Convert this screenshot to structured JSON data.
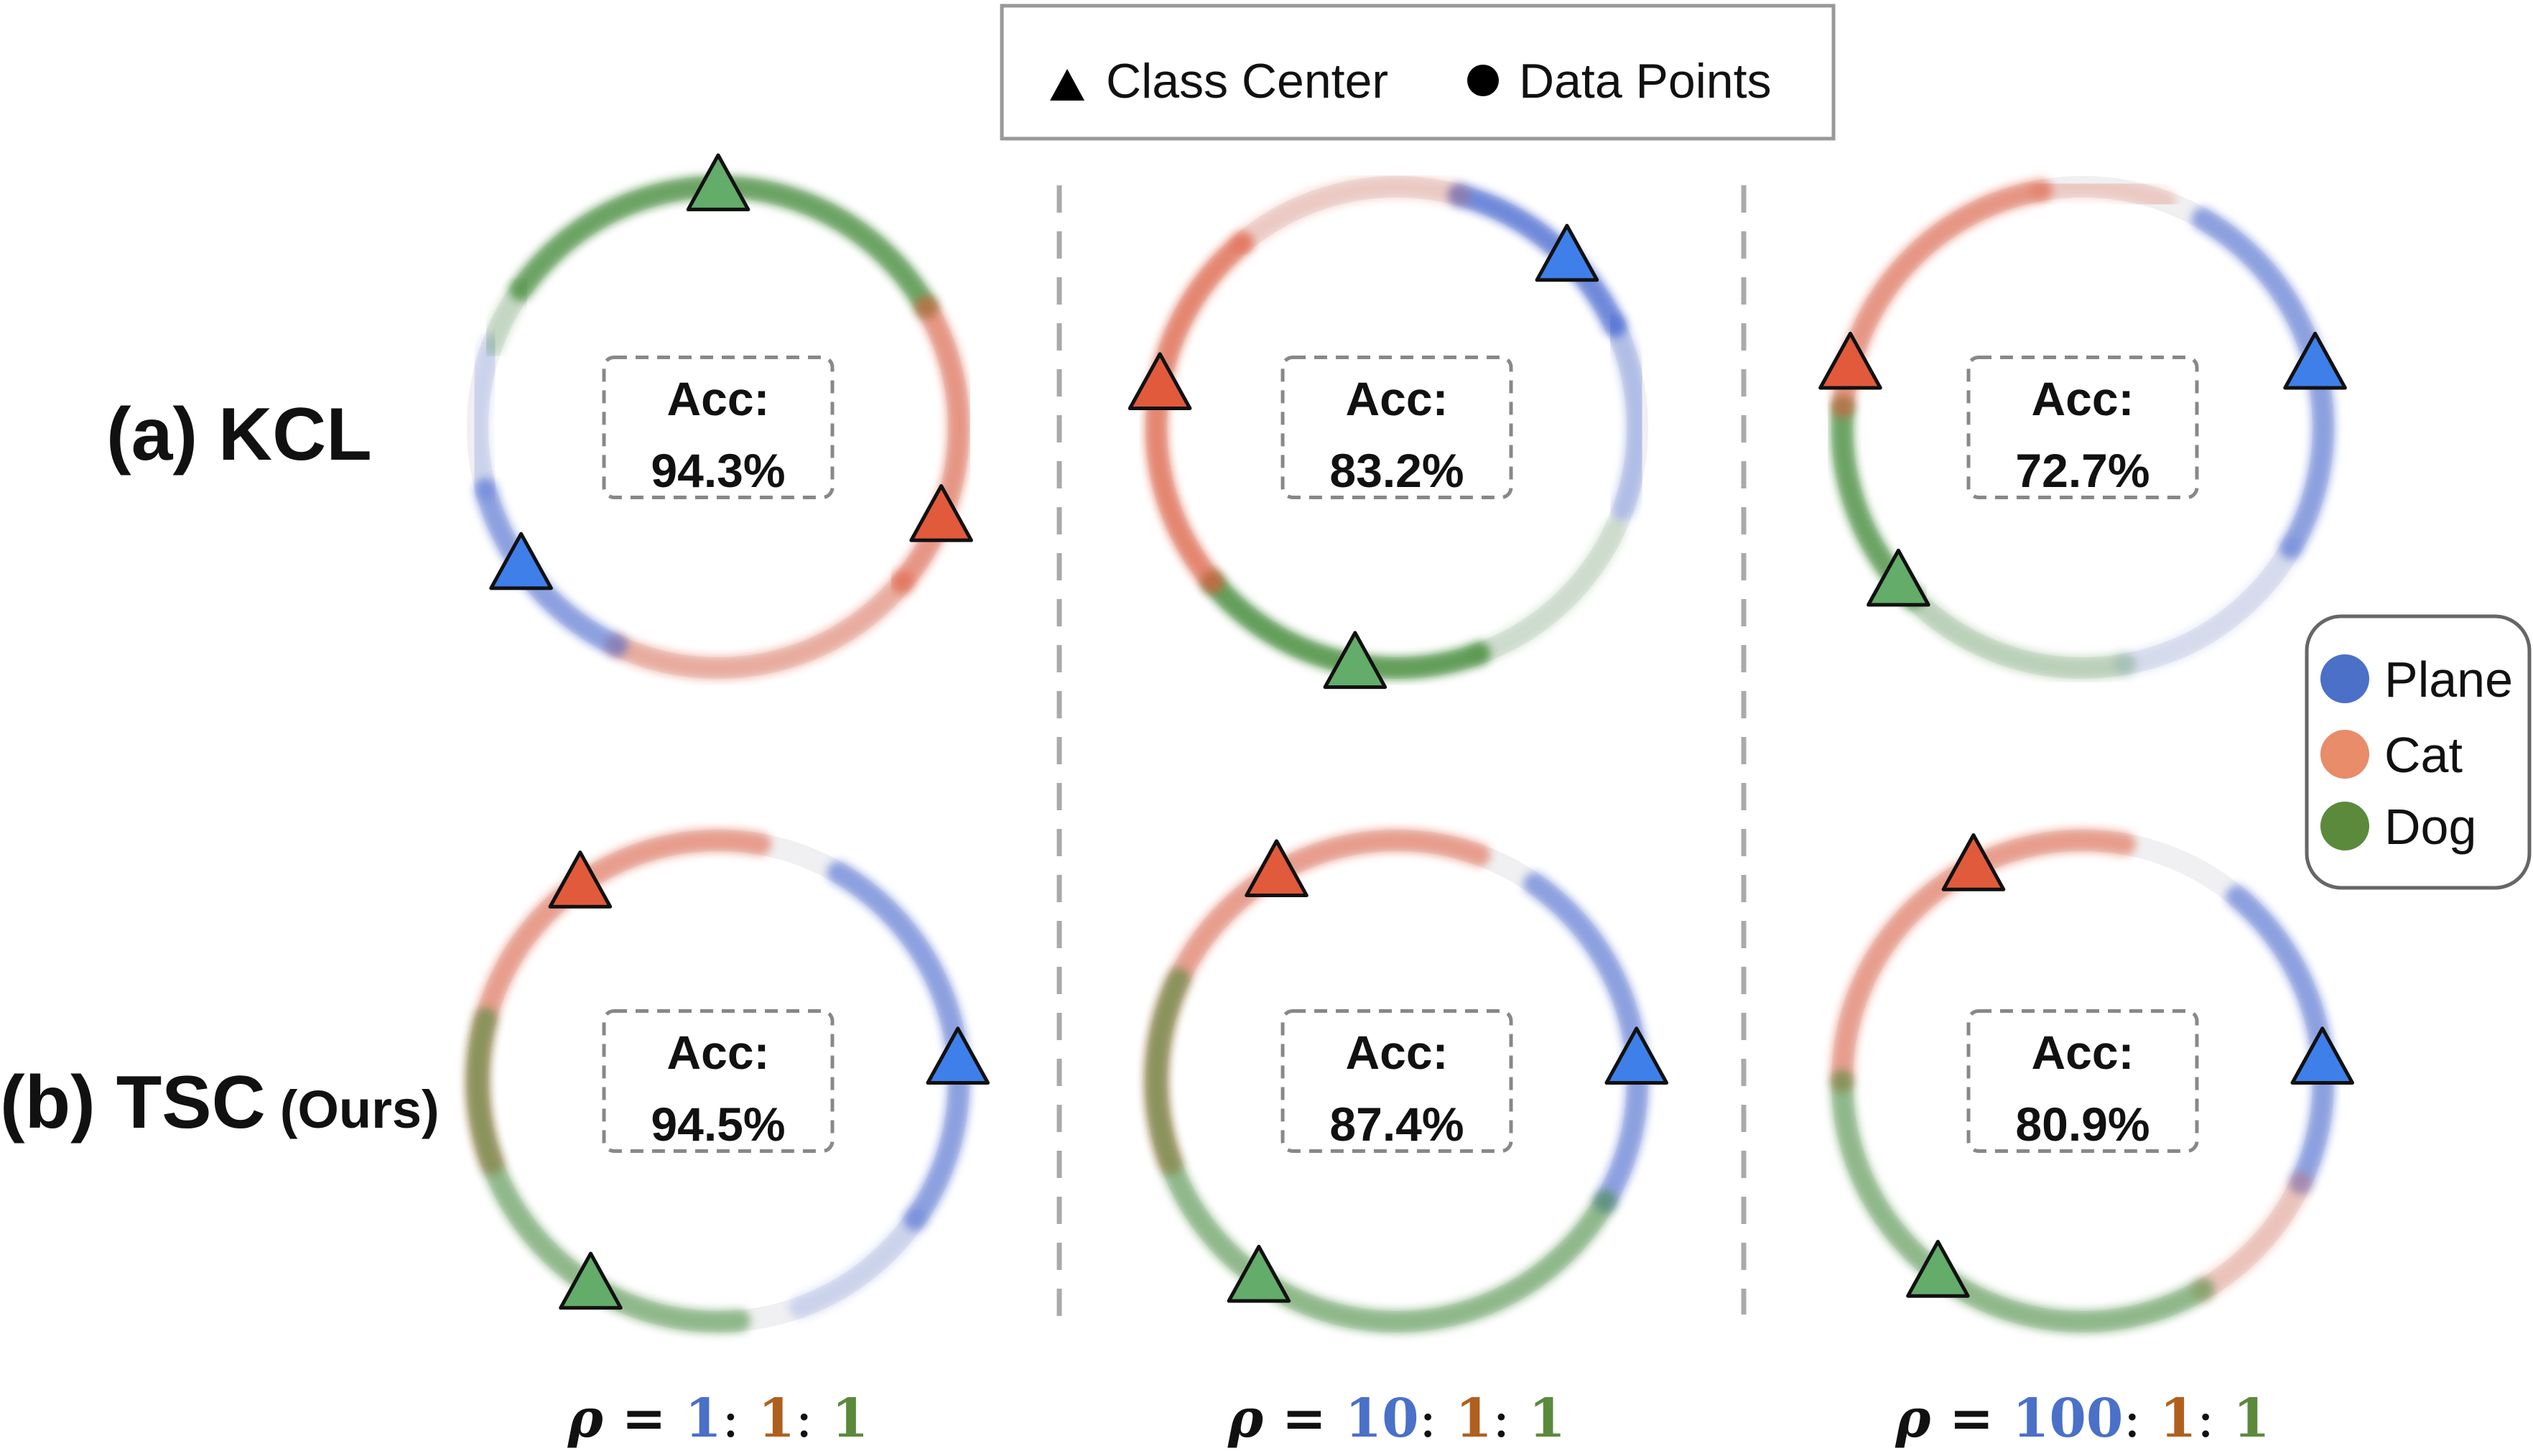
{
  "top_legend": {
    "items": [
      {
        "label": "Class Center",
        "icon": "triangle-icon"
      },
      {
        "label": "Data Points",
        "icon": "circle-icon"
      }
    ]
  },
  "rows": [
    {
      "label_main": "(a) KCL",
      "label_suffix": ""
    },
    {
      "label_main": "(b) TSC",
      "label_suffix": "(Ours)"
    }
  ],
  "class_legend": [
    {
      "label": "Plane",
      "color": "#4a70c8"
    },
    {
      "label": "Cat",
      "color": "#e88c6a"
    },
    {
      "label": "Dog",
      "color": "#5b8a3c"
    }
  ],
  "acc_label": "Acc:",
  "panels": [
    {
      "id": "kcl-1",
      "acc": "94.3%",
      "centers": [
        {
          "cls": "dog",
          "deg": -90
        },
        {
          "cls": "cat",
          "deg": 22
        },
        {
          "cls": "plane",
          "deg": 145
        }
      ],
      "segments": [
        {
          "cls": "dog",
          "from": -145,
          "to": -30,
          "o": 0.75
        },
        {
          "cls": "cat",
          "from": -30,
          "to": 40,
          "o": 0.6
        },
        {
          "cls": "cat",
          "from": 40,
          "to": 115,
          "o": 0.45
        },
        {
          "cls": "plane",
          "from": 115,
          "to": 165,
          "o": 0.55
        },
        {
          "cls": "plane",
          "from": 165,
          "to": 200,
          "o": 0.2
        },
        {
          "cls": "dog",
          "from": 200,
          "to": 215,
          "o": 0.25
        }
      ]
    },
    {
      "id": "kcl-2",
      "acc": "83.2%",
      "centers": [
        {
          "cls": "plane",
          "deg": -45
        },
        {
          "cls": "cat",
          "deg": 190
        },
        {
          "cls": "dog",
          "deg": 100
        }
      ],
      "segments": [
        {
          "cls": "plane",
          "from": -75,
          "to": -25,
          "o": 0.7
        },
        {
          "cls": "plane",
          "from": -25,
          "to": 20,
          "o": 0.35
        },
        {
          "cls": "dog",
          "from": 25,
          "to": 70,
          "o": 0.2
        },
        {
          "cls": "dog",
          "from": 70,
          "to": 140,
          "o": 0.8
        },
        {
          "cls": "cat",
          "from": 140,
          "to": 230,
          "o": 0.7
        },
        {
          "cls": "cat",
          "from": 230,
          "to": 285,
          "o": 0.25
        }
      ]
    },
    {
      "id": "kcl-3",
      "acc": "72.7%",
      "centers": [
        {
          "cls": "plane",
          "deg": -15
        },
        {
          "cls": "cat",
          "deg": 195
        },
        {
          "cls": "dog",
          "deg": 140
        }
      ],
      "segments": [
        {
          "cls": "plane",
          "from": -60,
          "to": 30,
          "o": 0.55
        },
        {
          "cls": "plane",
          "from": 30,
          "to": 80,
          "o": 0.15
        },
        {
          "cls": "dog",
          "from": 80,
          "to": 135,
          "o": 0.3
        },
        {
          "cls": "dog",
          "from": 135,
          "to": 185,
          "o": 0.75
        },
        {
          "cls": "cat",
          "from": 185,
          "to": 260,
          "o": 0.6
        },
        {
          "cls": "cat",
          "from": 260,
          "to": 290,
          "o": 0.25
        }
      ]
    },
    {
      "id": "tsc-1",
      "acc": "94.5%",
      "centers": [
        {
          "cls": "cat",
          "deg": -125
        },
        {
          "cls": "plane",
          "deg": -5
        },
        {
          "cls": "dog",
          "deg": 122
        }
      ],
      "segments": [
        {
          "cls": "cat",
          "from": -200,
          "to": -80,
          "o": 0.55
        },
        {
          "cls": "plane",
          "from": -60,
          "to": 35,
          "o": 0.55
        },
        {
          "cls": "plane",
          "from": 35,
          "to": 70,
          "o": 0.2
        },
        {
          "cls": "dog",
          "from": 85,
          "to": 195,
          "o": 0.55
        }
      ]
    },
    {
      "id": "tsc-2",
      "acc": "87.4%",
      "centers": [
        {
          "cls": "cat",
          "deg": -120
        },
        {
          "cls": "plane",
          "deg": -5
        },
        {
          "cls": "dog",
          "deg": 125
        }
      ],
      "segments": [
        {
          "cls": "cat",
          "from": -200,
          "to": -70,
          "o": 0.55
        },
        {
          "cls": "plane",
          "from": -55,
          "to": 30,
          "o": 0.55
        },
        {
          "cls": "dog",
          "from": 30,
          "to": 205,
          "o": 0.55
        }
      ]
    },
    {
      "id": "tsc-3",
      "acc": "80.9%",
      "centers": [
        {
          "cls": "cat",
          "deg": -117
        },
        {
          "cls": "plane",
          "deg": -5
        },
        {
          "cls": "dog",
          "deg": 127
        }
      ],
      "segments": [
        {
          "cls": "cat",
          "from": -180,
          "to": -80,
          "o": 0.55
        },
        {
          "cls": "plane",
          "from": -50,
          "to": 25,
          "o": 0.55
        },
        {
          "cls": "cat",
          "from": 25,
          "to": 60,
          "o": 0.3
        },
        {
          "cls": "dog",
          "from": 60,
          "to": 180,
          "o": 0.55
        }
      ]
    }
  ],
  "ratios": [
    {
      "rho": "ρ",
      "eq": "=",
      "a": "1",
      "b": "1",
      "c": "1"
    },
    {
      "rho": "ρ",
      "eq": "=",
      "a": "10",
      "b": "1",
      "c": "1"
    },
    {
      "rho": "ρ",
      "eq": "=",
      "a": "100",
      "b": "1",
      "c": "1"
    }
  ],
  "ratio_colors": {
    "a": "#4a70c8",
    "b": "#b0601e",
    "c": "#5b8a3c",
    "rho": "#111111"
  },
  "class_colors": {
    "plane": "#3a5fd0",
    "cat": "#e05a3a",
    "dog": "#3f8a34"
  },
  "center_fill": {
    "plane": "#3f7fea",
    "cat": "#e25a3c",
    "dog": "#63ac6a"
  }
}
